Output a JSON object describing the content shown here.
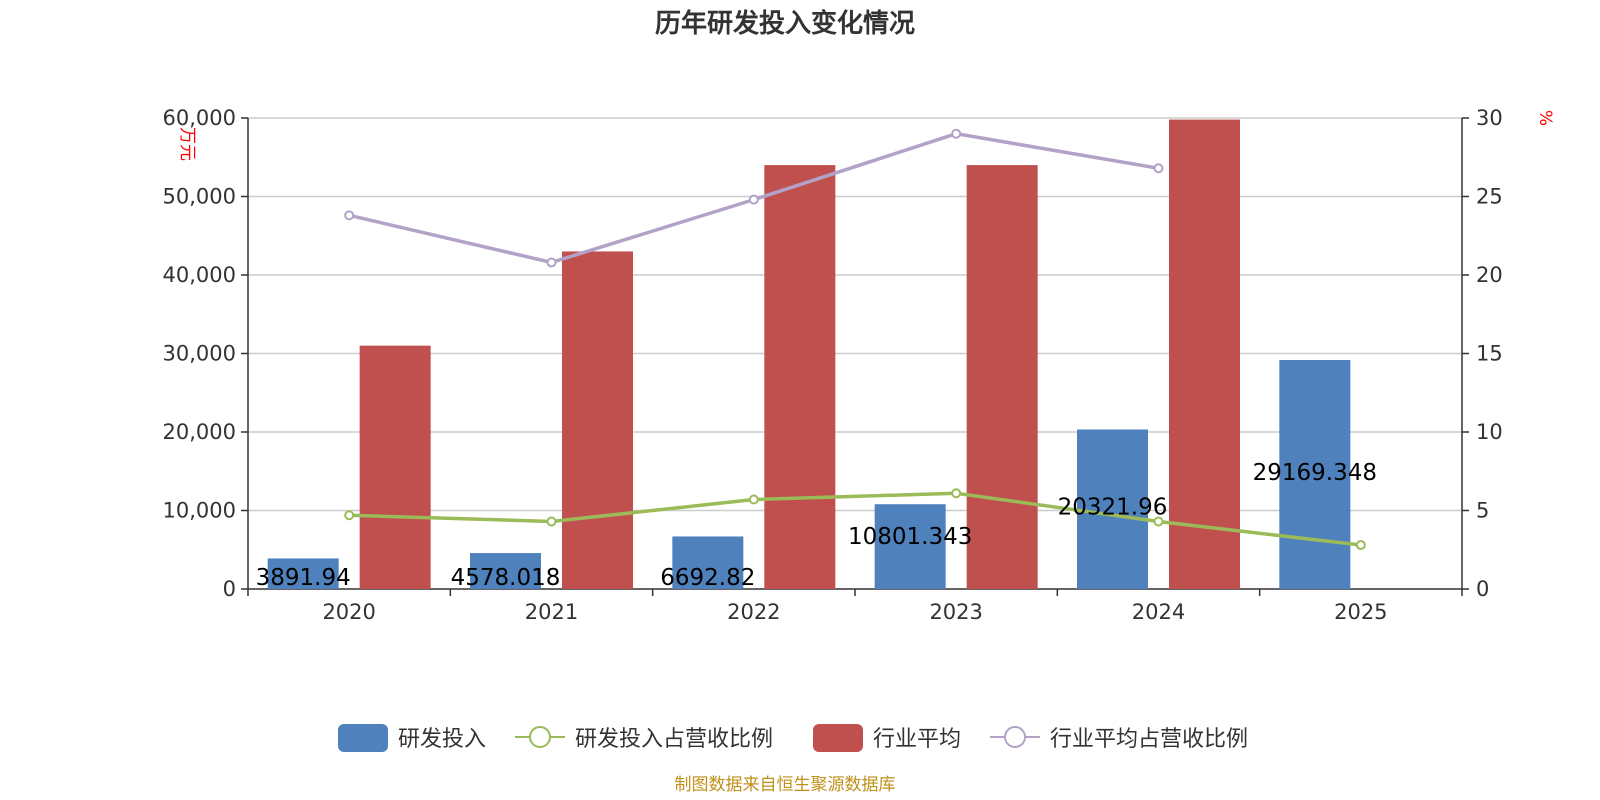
{
  "title": "历年研发投入变化情况",
  "source_note": "制图数据来自恒生聚源数据库",
  "colors": {
    "rd": "#4f81bd",
    "rd_ratio": "#9bbb59",
    "industry": "#c0504d",
    "industry_ratio": "#b2a2c7",
    "grid": "#cccccc",
    "axis": "#333333"
  },
  "chart_data": {
    "type": "bar",
    "categories": [
      "2020",
      "2021",
      "2022",
      "2023",
      "2024",
      "2025"
    ],
    "y_left": {
      "label": "万元",
      "min": 0,
      "max": 60000,
      "ticks": [
        0,
        10000,
        20000,
        30000,
        40000,
        50000,
        60000
      ],
      "tick_labels": [
        "0",
        "10,000",
        "20,000",
        "30,000",
        "40,000",
        "50,000",
        "60,000"
      ]
    },
    "y_right": {
      "label": "%",
      "min": 0,
      "max": 30,
      "ticks": [
        0,
        5,
        10,
        15,
        20,
        25,
        30
      ],
      "tick_labels": [
        "0",
        "5",
        "10",
        "15",
        "20",
        "25",
        "30"
      ]
    },
    "grid": true,
    "legend_position": "bottom",
    "series": [
      {
        "name": "研发投入",
        "type": "bar",
        "axis": "left",
        "values": [
          3891.94,
          4578.018,
          6692.82,
          10801.343,
          20321.96,
          29169.348
        ],
        "labels": [
          "3891.94",
          "4578.018",
          "6692.82",
          "10801.343",
          "20321.96",
          "29169.348"
        ]
      },
      {
        "name": "研发投入占营收比例",
        "type": "line",
        "axis": "right",
        "values": [
          4.7,
          4.3,
          5.7,
          6.1,
          4.3,
          2.8
        ]
      },
      {
        "name": "行业平均",
        "type": "bar",
        "axis": "left",
        "values": [
          31000,
          43000,
          54000,
          54000,
          59800,
          null
        ]
      },
      {
        "name": "行业平均占营收比例",
        "type": "line",
        "axis": "right",
        "values": [
          23.8,
          20.8,
          24.8,
          29.0,
          26.8,
          null
        ]
      }
    ]
  }
}
